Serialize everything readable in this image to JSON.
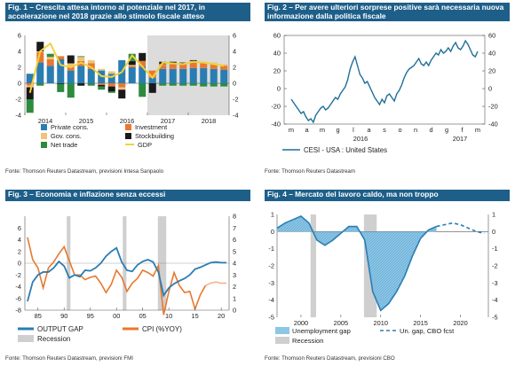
{
  "colors": {
    "title_bg": "#1e5f8a",
    "private_cons": "#2a7db3",
    "investment": "#e8782f",
    "gov_cons": "#f2c279",
    "stockbuilding": "#1a1a1a",
    "net_trade": "#2e8b3e",
    "gdp": "#f0d23c",
    "cesi": "#1e6f99",
    "output_gap": "#2a7db3",
    "cpi": "#e8782f",
    "cpi_forecast": "#f2b48e",
    "recession": "#cfcfcf",
    "unemp_gap": "#2a7db3"
  },
  "chart_data": [
    {
      "type": "bar",
      "title": "Fig. 1 – Crescita attesa intorno al potenziale nel 2017, in accelerazione nel 2018 grazie allo stimolo fiscale atteso",
      "source": "Fonte: Thomson Reuters Datastream, previsioni Intesa Sanpaolo",
      "ylim": [
        -4,
        6
      ],
      "yticks": [
        "6",
        "4",
        "2",
        "0",
        "-2",
        "-4"
      ],
      "xticks": [
        "2014",
        "2015",
        "2016",
        "2017",
        "2018"
      ],
      "categories": [
        "Q1-14",
        "Q2-14",
        "Q3-14",
        "Q4-14",
        "Q1-15",
        "Q2-15",
        "Q3-15",
        "Q4-15",
        "Q1-16",
        "Q2-16",
        "Q3-16",
        "Q4-16",
        "Q1-17",
        "Q2-17",
        "Q3-17",
        "Q4-17",
        "Q1-18",
        "Q2-18",
        "Q3-18",
        "Q4-18"
      ],
      "forecast_from_index": 12,
      "series": [
        {
          "name": "Private cons.",
          "values": [
            1.2,
            2.6,
            2.2,
            3.0,
            1.6,
            2.2,
            1.8,
            1.6,
            1.2,
            2.9,
            2.0,
            2.1,
            0.7,
            1.8,
            1.8,
            1.8,
            1.9,
            1.9,
            1.8,
            1.7
          ]
        },
        {
          "name": "Investment",
          "values": [
            -0.3,
            1.3,
            0.8,
            0.4,
            0.5,
            0.6,
            0.7,
            -0.2,
            -0.4,
            -0.5,
            0.2,
            0.7,
            0.9,
            0.5,
            0.6,
            0.6,
            0.7,
            0.6,
            0.6,
            0.5
          ]
        },
        {
          "name": "Gov. cons.",
          "values": [
            -0.2,
            0.1,
            0.3,
            0.0,
            0.4,
            0.5,
            0.4,
            0.2,
            0.3,
            -0.3,
            0.1,
            0.0,
            0.0,
            0.1,
            0.1,
            0.1,
            0.2,
            0.2,
            0.2,
            0.2
          ]
        },
        {
          "name": "Stockbuilding",
          "values": [
            -1.5,
            1.2,
            0.0,
            -0.1,
            1.0,
            -0.3,
            0.0,
            -0.2,
            -0.6,
            -1.1,
            0.5,
            1.0,
            -1.2,
            0.3,
            0.2,
            0.1,
            0.1,
            0.0,
            0.0,
            0.0
          ]
        },
        {
          "name": "Net trade",
          "values": [
            -1.7,
            -0.3,
            0.4,
            -1.0,
            -1.8,
            0.1,
            -0.3,
            -0.4,
            -0.2,
            0.0,
            0.9,
            -1.7,
            0.0,
            -0.3,
            -0.3,
            -0.3,
            -0.3,
            -0.4,
            -0.4,
            -0.4
          ]
        }
      ],
      "line": {
        "name": "GDP",
        "values": [
          -1.2,
          4.0,
          5.0,
          2.3,
          2.0,
          2.6,
          2.0,
          0.9,
          0.8,
          1.4,
          3.5,
          2.1,
          0.7,
          2.6,
          2.5,
          2.4,
          2.7,
          2.6,
          2.4,
          2.2
        ]
      }
    },
    {
      "type": "line",
      "title": "Fig. 2 – Per avere ulteriori sorprese positive sarà necessaria nuova informazione dalla politica fiscale",
      "source": "Fonte: Thomson Reuters Datastream",
      "ylim": [
        -40,
        60
      ],
      "yticks": [
        "60",
        "40",
        "20",
        "0",
        "-20",
        "-40"
      ],
      "month_ticks": [
        "m",
        "a",
        "m",
        "g",
        "l",
        "a",
        "s",
        "o",
        "n",
        "d",
        "g",
        "f",
        "m"
      ],
      "year_ticks": [
        "2016",
        "2017"
      ],
      "series": [
        {
          "name": "CESI - USA : United States",
          "values": [
            -12,
            -16,
            -20,
            -24,
            -28,
            -26,
            -32,
            -36,
            -34,
            -38,
            -30,
            -26,
            -22,
            -20,
            -24,
            -22,
            -18,
            -14,
            -10,
            -12,
            -6,
            -2,
            2,
            10,
            22,
            30,
            36,
            26,
            16,
            12,
            6,
            8,
            2,
            -4,
            -10,
            -14,
            -18,
            -12,
            -16,
            -8,
            -6,
            -10,
            -14,
            -6,
            -2,
            4,
            12,
            18,
            22,
            24,
            26,
            30,
            34,
            28,
            26,
            30,
            26,
            32,
            36,
            40,
            38,
            44,
            40,
            42,
            46,
            42,
            48,
            52,
            46,
            44,
            48,
            54,
            50,
            44,
            38,
            36,
            42
          ]
        }
      ]
    },
    {
      "type": "line",
      "title": "Fig. 3 – Economia e inflazione senza eccessi",
      "source": "Fonte: Thomson Reuters Datastream, previsioni FMI",
      "left_ylim": [
        -8,
        8
      ],
      "right_ylim": [
        0,
        8
      ],
      "left_yticks": [
        "6",
        "4",
        "2",
        "0",
        "-2",
        "-4",
        "-6",
        "-8"
      ],
      "right_yticks": [
        "8",
        "7",
        "6",
        "5",
        "4",
        "3",
        "2",
        "1",
        "0"
      ],
      "xticks": [
        "85",
        "90",
        "95",
        "00",
        "05",
        "10",
        "15",
        "20"
      ],
      "recessions": [
        [
          1990.5,
          1991.2
        ],
        [
          2001.2,
          2001.9
        ],
        [
          2007.9,
          2009.5
        ]
      ],
      "series": [
        {
          "name": "OUTPUT GAP",
          "axis": "left",
          "x": [
            1983,
            1984,
            1985,
            1986,
            1987,
            1988,
            1989,
            1990,
            1991,
            1992,
            1993,
            1994,
            1995,
            1996,
            1997,
            1998,
            1999,
            2000,
            2001,
            2002,
            2003,
            2004,
            2005,
            2006,
            2007,
            2008,
            2009,
            2010,
            2011,
            2012,
            2013,
            2014,
            2015,
            2016,
            2017,
            2018,
            2019,
            2020,
            2021
          ],
          "values": [
            -6.5,
            -3.2,
            -2.0,
            -1.5,
            -1.5,
            -0.8,
            0.3,
            -0.5,
            -2.5,
            -2.0,
            -2.3,
            -1.2,
            -1.3,
            -0.8,
            0.0,
            1.2,
            2.0,
            2.6,
            0.2,
            -1.2,
            -1.4,
            -0.3,
            0.3,
            0.6,
            0.2,
            -1.5,
            -5.5,
            -4.2,
            -3.5,
            -3.0,
            -2.6,
            -2.0,
            -1.0,
            -0.7,
            -0.3,
            0.1,
            0.2,
            0.1,
            0.1
          ]
        },
        {
          "name": "CPI (%YOY)",
          "axis": "right",
          "x": [
            1983,
            1984,
            1985,
            1986,
            1987,
            1988,
            1989,
            1990,
            1991,
            1992,
            1993,
            1994,
            1995,
            1996,
            1997,
            1998,
            1999,
            2000,
            2001,
            2002,
            2003,
            2004,
            2005,
            2006,
            2007,
            2008,
            2009,
            2010,
            2011,
            2012,
            2013,
            2014,
            2015,
            2016,
            2017,
            2018,
            2019,
            2020,
            2021
          ],
          "values": [
            6.2,
            4.3,
            3.6,
            1.9,
            3.6,
            4.1,
            4.8,
            5.4,
            4.2,
            3.0,
            3.0,
            2.6,
            2.8,
            2.9,
            2.3,
            1.5,
            2.2,
            3.4,
            2.8,
            1.6,
            2.3,
            2.7,
            3.4,
            3.2,
            2.9,
            3.8,
            -0.4,
            1.6,
            3.2,
            2.1,
            1.5,
            1.6,
            0.1,
            1.3,
            2.1,
            2.3,
            2.4,
            2.3,
            2.3
          ],
          "forecast_from_index": 34
        }
      ],
      "legend": [
        "OUTPUT GAP",
        "CPI (%YOY)",
        "Recession"
      ]
    },
    {
      "type": "area",
      "title": "Fig. 4 – Mercato del lavoro caldo, ma non troppo",
      "source": "Fonte: Thomson Reuters Datastream, previsioni CBO",
      "left_ylim": [
        -5,
        1
      ],
      "right_ylim": [
        -5,
        1
      ],
      "left_yticks": [
        "1",
        "0",
        "-1",
        "-2",
        "-3",
        "-4",
        "-5"
      ],
      "right_yticks": [
        "1",
        "0",
        "-1",
        "-2",
        "-3",
        "-4",
        "-5"
      ],
      "xticks": [
        "2000",
        "2005",
        "2010",
        "2015",
        "2020"
      ],
      "recessions": [
        [
          2001.2,
          2001.9
        ],
        [
          2007.9,
          2009.5
        ]
      ],
      "series": [
        {
          "name": "Unemployment gap",
          "x": [
            1997,
            1998,
            1999,
            2000,
            2001,
            2002,
            2003,
            2004,
            2005,
            2006,
            2007,
            2008,
            2009,
            2010,
            2011,
            2012,
            2013,
            2014,
            2015,
            2016,
            2017
          ],
          "values": [
            0.2,
            0.5,
            0.7,
            0.9,
            0.5,
            -0.5,
            -0.8,
            -0.5,
            -0.1,
            0.3,
            0.3,
            -0.5,
            -3.5,
            -4.6,
            -4.2,
            -3.5,
            -2.6,
            -1.4,
            -0.4,
            0.1,
            0.3
          ]
        },
        {
          "name": "Un. gap, CBO fcst",
          "x": [
            2017,
            2018,
            2019,
            2020,
            2021,
            2022,
            2023
          ],
          "values": [
            0.3,
            0.4,
            0.5,
            0.4,
            0.2,
            0.0,
            -0.1
          ]
        }
      ],
      "legend": [
        "Unemployment gap",
        "Un. gap, CBO fcst",
        "Recession"
      ]
    }
  ]
}
